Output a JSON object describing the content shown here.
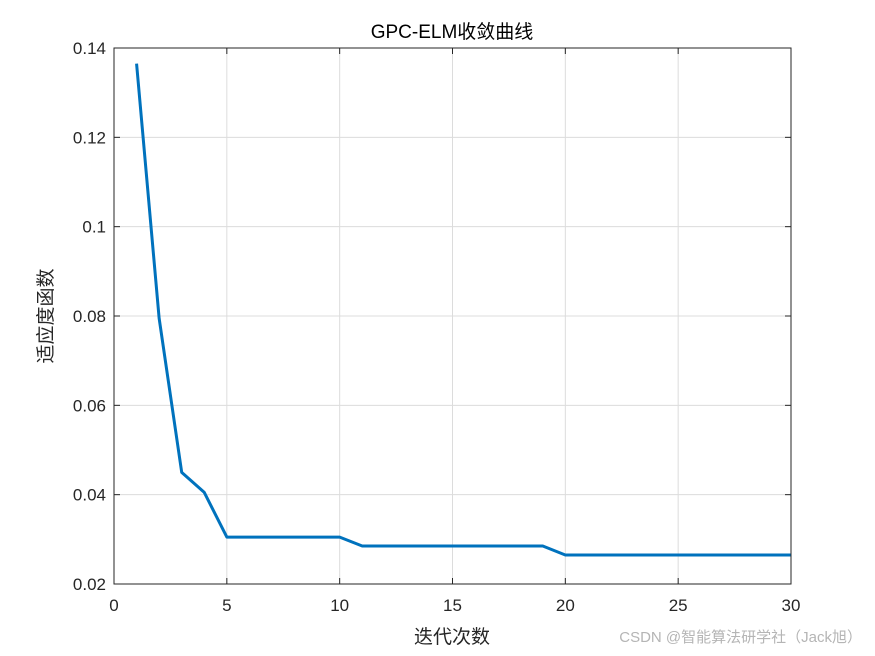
{
  "chart_data": {
    "type": "line",
    "title": "GPC-ELM收敛曲线",
    "xlabel": "迭代次数",
    "ylabel": "适应度函数",
    "xlim": [
      0,
      30
    ],
    "ylim": [
      0.02,
      0.14
    ],
    "xticks": [
      "0",
      "5",
      "10",
      "15",
      "20",
      "25",
      "30"
    ],
    "yticks": [
      "0.02",
      "0.04",
      "0.06",
      "0.08",
      "0.1",
      "0.12",
      "0.14"
    ],
    "grid": true,
    "series": [
      {
        "color": "#0072bd",
        "x": [
          1,
          2,
          3,
          4,
          5,
          6,
          7,
          8,
          9,
          10,
          11,
          12,
          13,
          14,
          15,
          16,
          17,
          18,
          19,
          20,
          21,
          22,
          23,
          24,
          25,
          26,
          27,
          28,
          29,
          30
        ],
        "y": [
          0.1365,
          0.0795,
          0.045,
          0.0405,
          0.0305,
          0.0305,
          0.0305,
          0.0305,
          0.0305,
          0.0305,
          0.0285,
          0.0285,
          0.0285,
          0.0285,
          0.0285,
          0.0285,
          0.0285,
          0.0285,
          0.0285,
          0.0265,
          0.0265,
          0.0265,
          0.0265,
          0.0265,
          0.0265,
          0.0265,
          0.0265,
          0.0265,
          0.0265,
          0.0265
        ]
      }
    ]
  },
  "watermark": "CSDN @智能算法研学社（Jack旭）"
}
